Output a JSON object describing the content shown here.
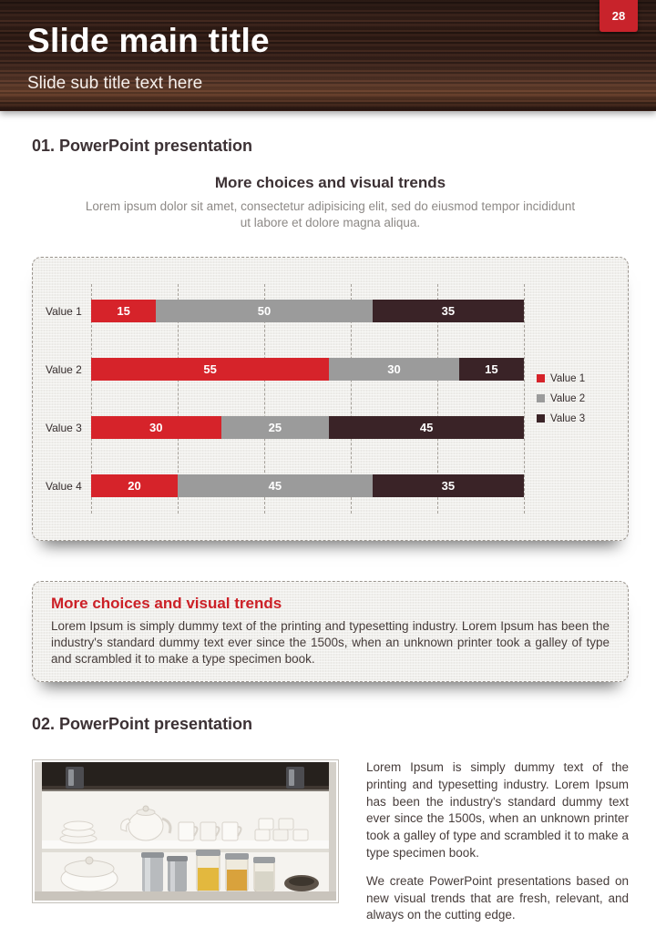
{
  "page": {
    "number": "28"
  },
  "header": {
    "title": "Slide main title",
    "subtitle": "Slide sub title text here"
  },
  "section1": {
    "heading": "01. PowerPoint presentation",
    "chart_title": "More choices and visual trends",
    "chart_subtitle": "Lorem ipsum dolor sit amet, consectetur adipisicing elit, sed do eiusmod tempor incididunt ut labore et dolore magna aliqua."
  },
  "chart_data": {
    "type": "bar",
    "orientation": "horizontal",
    "stacked": true,
    "categories": [
      "Value 1",
      "Value 2",
      "Value 3",
      "Value 4"
    ],
    "series": [
      {
        "name": "Value 1",
        "color": "#d6232a",
        "values": [
          15,
          55,
          30,
          20
        ]
      },
      {
        "name": "Value 2",
        "color": "#9b9b9b",
        "values": [
          50,
          30,
          25,
          45
        ]
      },
      {
        "name": "Value 3",
        "color": "#3a2327",
        "values": [
          35,
          15,
          45,
          35
        ]
      }
    ],
    "xlim": [
      0,
      100
    ],
    "gridline_step": 20,
    "grid": "dashed-vertical",
    "legend_position": "right"
  },
  "callout": {
    "title": "More choices and visual trends",
    "body": "Lorem Ipsum is simply dummy text of the printing and typesetting industry. Lorem Ipsum has been the industry's standard dummy text ever since the 1500s, when an unknown printer took a galley of type and scrambled it to make a type specimen book."
  },
  "section2": {
    "heading": "02. PowerPoint presentation",
    "image_alt": "kitchen cupboard with teapot, cups, canisters and jars",
    "paragraph1": "Lorem Ipsum is simply dummy text of the printing and typesetting industry. Lorem Ipsum has been the industry's standard dummy text ever since the 1500s, when an unknown printer took a galley of type and scrambled it to make a type specimen book.",
    "paragraph2": "We create PowerPoint presentations based on new visual trends that are fresh, relevant, and always on the cutting edge."
  },
  "colors": {
    "accent_red": "#d6232a",
    "tab_red": "#c8232b",
    "bar_gray": "#9b9b9b",
    "bar_dark": "#3a2327",
    "header_wood": "#33211c",
    "panel_bg": "#f0efec"
  }
}
